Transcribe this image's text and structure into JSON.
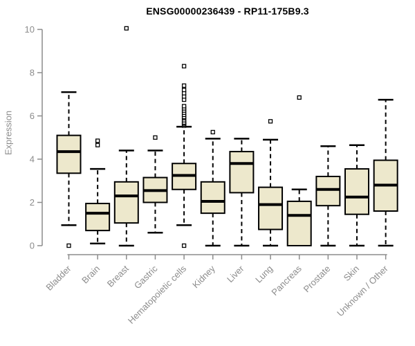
{
  "chart_data": {
    "type": "boxplot",
    "title": "ENSG00000236439 - RP11-175B9.3",
    "xlabel": "",
    "ylabel": "Expression",
    "ylim": [
      0,
      10
    ],
    "yticks": [
      0,
      2,
      4,
      6,
      8,
      10
    ],
    "grid": false,
    "legend": false,
    "colors": {
      "background": "#ffffff",
      "box_fill": "#ede8cc",
      "box_border": "#000000",
      "median": "#000000",
      "whisker": "#000000",
      "outlier": "#000000",
      "axis": "#8c8c8c",
      "tick_label": "#8c8c8c",
      "title": "#000000"
    },
    "categories": [
      "Bladder",
      "Brain",
      "Breast",
      "Gastric",
      "Hematopoietic cells",
      "Kidney",
      "Liver",
      "Lung",
      "Pancreas",
      "Prostate",
      "Skin",
      "Unknown / Other"
    ],
    "boxes": [
      {
        "whisker_low": 0.95,
        "q1": 3.35,
        "median": 4.35,
        "q3": 5.1,
        "whisker_high": 7.1,
        "outliers": [
          0
        ]
      },
      {
        "whisker_low": 0.1,
        "q1": 0.7,
        "median": 1.5,
        "q3": 1.95,
        "whisker_high": 3.55,
        "outliers": [
          4.65,
          4.85
        ]
      },
      {
        "whisker_low": 0.0,
        "q1": 1.05,
        "median": 2.3,
        "q3": 2.95,
        "whisker_high": 4.4,
        "outliers": [
          10.05
        ]
      },
      {
        "whisker_low": 0.6,
        "q1": 2.0,
        "median": 2.55,
        "q3": 3.15,
        "whisker_high": 4.4,
        "outliers": [
          5.0
        ]
      },
      {
        "whisker_low": 0.95,
        "q1": 2.6,
        "median": 3.25,
        "q3": 3.8,
        "whisker_high": 5.5,
        "outliers": [
          0,
          5.55,
          5.6,
          5.65,
          5.7,
          5.8,
          5.9,
          5.95,
          6.05,
          6.15,
          6.25,
          6.35,
          6.45,
          6.75,
          6.9,
          7.05,
          7.2,
          7.4,
          8.3
        ]
      },
      {
        "whisker_low": 0.0,
        "q1": 1.5,
        "median": 2.05,
        "q3": 2.95,
        "whisker_high": 4.95,
        "outliers": [
          5.25
        ]
      },
      {
        "whisker_low": 0.0,
        "q1": 2.45,
        "median": 3.8,
        "q3": 4.35,
        "whisker_high": 4.95,
        "outliers": []
      },
      {
        "whisker_low": 0.0,
        "q1": 0.75,
        "median": 1.9,
        "q3": 2.7,
        "whisker_high": 4.9,
        "outliers": [
          5.75
        ]
      },
      {
        "whisker_low": 0.0,
        "q1": 0.0,
        "median": 1.4,
        "q3": 2.05,
        "whisker_high": 2.6,
        "outliers": [
          6.85
        ]
      },
      {
        "whisker_low": 0.0,
        "q1": 1.85,
        "median": 2.6,
        "q3": 3.2,
        "whisker_high": 4.6,
        "outliers": []
      },
      {
        "whisker_low": 0.0,
        "q1": 1.45,
        "median": 2.25,
        "q3": 3.55,
        "whisker_high": 4.65,
        "outliers": []
      },
      {
        "whisker_low": 0.0,
        "q1": 1.6,
        "median": 2.8,
        "q3": 3.95,
        "whisker_high": 6.75,
        "outliers": []
      }
    ]
  }
}
